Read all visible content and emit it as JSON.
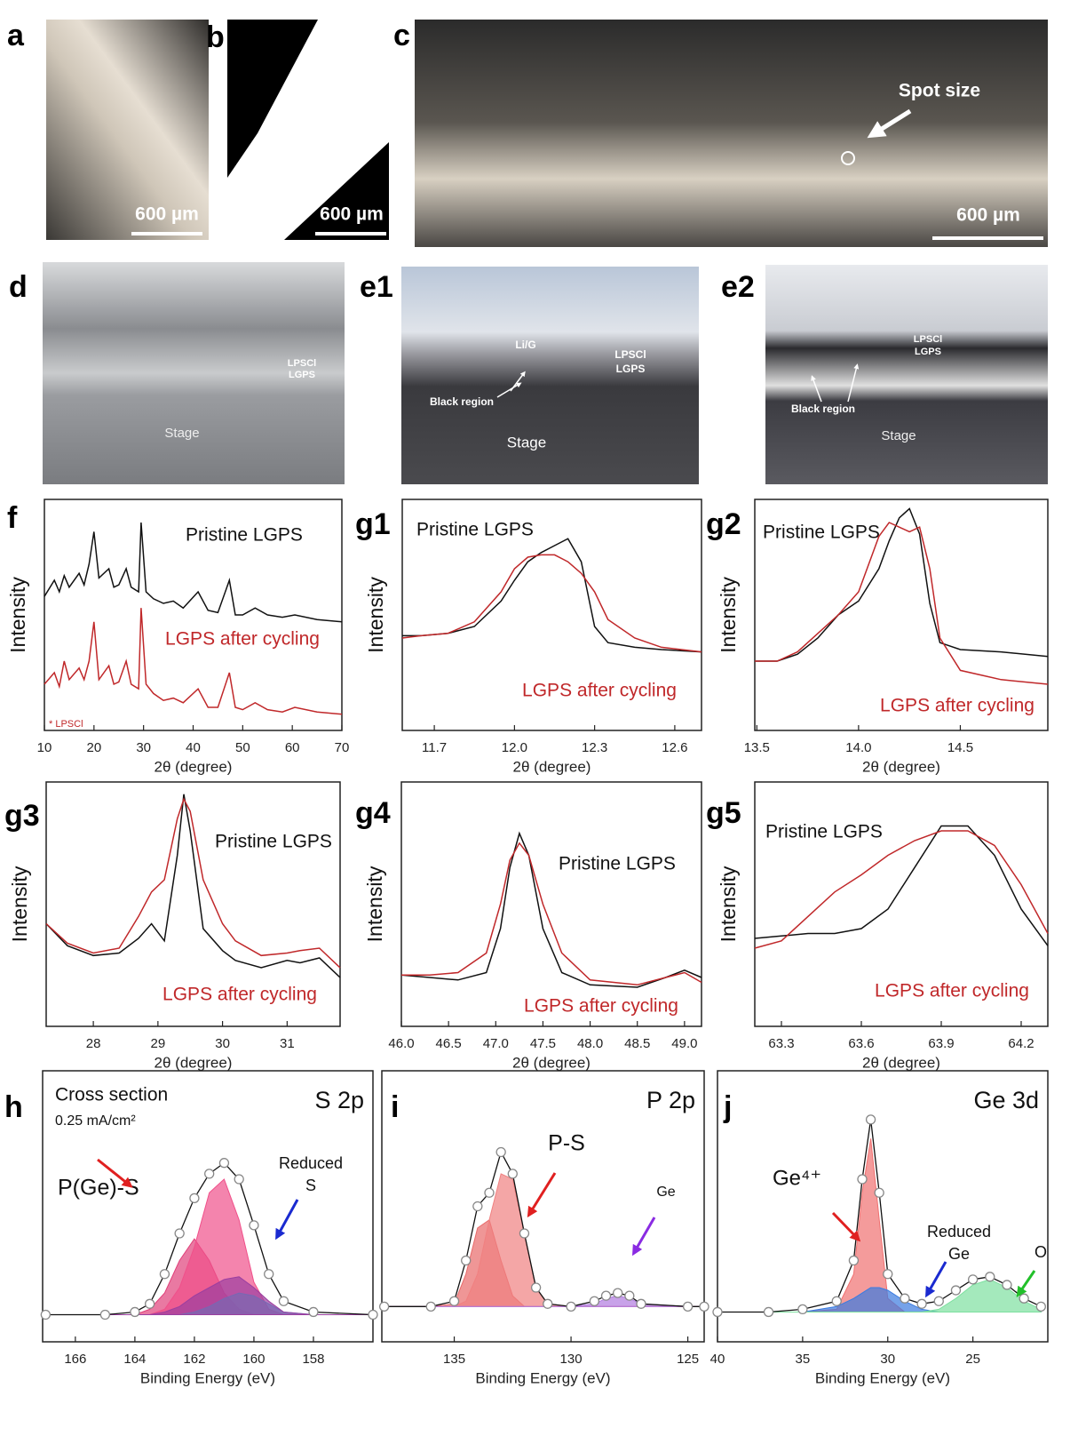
{
  "photos": [
    {
      "label": "a",
      "texts": [
        "600 µm"
      ]
    },
    {
      "label": "b",
      "texts": [
        "600 µm"
      ]
    },
    {
      "label": "c",
      "texts": [
        "Spot size",
        "600 µm"
      ]
    },
    {
      "label": "d",
      "texts": [
        "LPSCl",
        "LGPS",
        "Stage"
      ]
    },
    {
      "label": "e1",
      "texts": [
        "Li/G",
        "LPSCl",
        "LGPS",
        "Black region",
        "Stage"
      ]
    },
    {
      "label": "e2",
      "texts": [
        "LPSCl",
        "LGPS",
        "Black region",
        "Stage"
      ]
    }
  ],
  "chart_data": [
    {
      "type": "line",
      "panel": "f",
      "xlabel": "2θ (degree)",
      "ylabel": "Intensity",
      "xlim": [
        10,
        70
      ],
      "ylim": [
        0,
        1
      ],
      "xticks": [
        10,
        20,
        30,
        40,
        50,
        60,
        70
      ],
      "x": [
        10,
        12,
        13,
        14,
        15,
        17,
        18,
        19,
        20,
        21,
        23,
        24,
        25,
        26.5,
        27.5,
        29,
        29.5,
        30.5,
        32,
        34,
        36,
        38,
        41,
        43,
        45,
        47.3,
        48.5,
        50,
        52.5,
        55,
        58,
        60.5,
        65,
        70
      ],
      "series": [
        {
          "name": "Pristine LGPS",
          "color": "#111111",
          "values": [
            0.58,
            0.65,
            0.6,
            0.67,
            0.62,
            0.68,
            0.63,
            0.72,
            0.86,
            0.66,
            0.7,
            0.62,
            0.63,
            0.7,
            0.62,
            0.6,
            0.9,
            0.6,
            0.57,
            0.55,
            0.56,
            0.53,
            0.6,
            0.52,
            0.51,
            0.65,
            0.5,
            0.5,
            0.53,
            0.5,
            0.49,
            0.5,
            0.48,
            0.47
          ]
        },
        {
          "name": "LGPS after cycling",
          "color": "#c0282a",
          "values": [
            0.2,
            0.25,
            0.19,
            0.3,
            0.22,
            0.27,
            0.22,
            0.3,
            0.47,
            0.22,
            0.28,
            0.2,
            0.21,
            0.3,
            0.2,
            0.18,
            0.53,
            0.2,
            0.16,
            0.13,
            0.14,
            0.12,
            0.18,
            0.1,
            0.1,
            0.25,
            0.1,
            0.09,
            0.12,
            0.09,
            0.08,
            0.1,
            0.08,
            0.07
          ]
        }
      ],
      "annotations": [
        "* LPSCl"
      ]
    },
    {
      "type": "line",
      "panel": "g1",
      "xlabel": "2θ (degree)",
      "ylabel": "Intensity",
      "xlim": [
        11.58,
        12.7
      ],
      "ylim": [
        0,
        1
      ],
      "xticks": [
        11.7,
        {
          "value": 12,
          "label": "12.0"
        },
        12.3,
        12.6
      ],
      "x": [
        11.58,
        11.65,
        11.75,
        11.85,
        11.95,
        12.0,
        12.05,
        12.1,
        12.15,
        12.2,
        12.25,
        12.3,
        12.35,
        12.45,
        12.55,
        12.7
      ],
      "series": [
        {
          "name": "Pristine LGPS",
          "color": "#111111",
          "values": [
            0.41,
            0.41,
            0.42,
            0.45,
            0.56,
            0.65,
            0.73,
            0.77,
            0.8,
            0.83,
            0.73,
            0.45,
            0.38,
            0.36,
            0.35,
            0.34
          ]
        },
        {
          "name": "LGPS after cycling",
          "color": "#c0282a",
          "values": [
            0.4,
            0.41,
            0.42,
            0.47,
            0.6,
            0.7,
            0.75,
            0.76,
            0.76,
            0.73,
            0.68,
            0.6,
            0.48,
            0.4,
            0.36,
            0.34
          ]
        }
      ]
    },
    {
      "type": "line",
      "panel": "g2",
      "xlabel": "2θ (degree)",
      "ylabel": "Intensity",
      "xlim": [
        13.49,
        14.93
      ],
      "ylim": [
        0,
        1
      ],
      "xticks": [
        13.5,
        {
          "value": 14,
          "label": "14.0"
        },
        14.5
      ],
      "x": [
        13.49,
        13.6,
        13.7,
        13.8,
        13.9,
        14.0,
        14.1,
        14.15,
        14.2,
        14.25,
        14.3,
        14.35,
        14.4,
        14.5,
        14.7,
        14.93
      ],
      "series": [
        {
          "name": "Pristine LGPS",
          "color": "#111111",
          "values": [
            0.3,
            0.3,
            0.33,
            0.4,
            0.5,
            0.56,
            0.7,
            0.82,
            0.92,
            0.96,
            0.85,
            0.55,
            0.38,
            0.35,
            0.34,
            0.32
          ]
        },
        {
          "name": "LGPS after cycling",
          "color": "#c0282a",
          "values": [
            0.3,
            0.3,
            0.34,
            0.42,
            0.5,
            0.6,
            0.84,
            0.9,
            0.88,
            0.86,
            0.88,
            0.7,
            0.4,
            0.26,
            0.22,
            0.2
          ]
        }
      ]
    },
    {
      "type": "line",
      "panel": "g3",
      "xlabel": "2θ (degree)",
      "ylabel": "Intensity",
      "xlim": [
        27.27,
        31.82
      ],
      "ylim": [
        0,
        1
      ],
      "xticks": [
        28,
        29,
        30,
        31
      ],
      "x": [
        27.27,
        27.6,
        28.0,
        28.4,
        28.7,
        28.9,
        29.1,
        29.3,
        29.4,
        29.5,
        29.7,
        30.0,
        30.2,
        30.6,
        31.0,
        31.2,
        31.5,
        31.82
      ],
      "series": [
        {
          "name": "Pristine LGPS",
          "color": "#111111",
          "values": [
            0.42,
            0.33,
            0.29,
            0.3,
            0.36,
            0.42,
            0.35,
            0.7,
            0.95,
            0.8,
            0.4,
            0.31,
            0.27,
            0.24,
            0.27,
            0.26,
            0.28,
            0.2
          ]
        },
        {
          "name": "LGPS after cycling",
          "color": "#c0282a",
          "values": [
            0.42,
            0.34,
            0.3,
            0.32,
            0.45,
            0.55,
            0.6,
            0.85,
            0.93,
            0.88,
            0.6,
            0.42,
            0.35,
            0.29,
            0.3,
            0.31,
            0.32,
            0.24
          ]
        }
      ]
    },
    {
      "type": "line",
      "panel": "g4",
      "xlabel": "2θ (degree)",
      "ylabel": "Intensity",
      "xlim": [
        46,
        49.18
      ],
      "ylim": [
        0,
        1
      ],
      "xticks": [
        {
          "value": 46,
          "label": "46.0"
        },
        46.5,
        {
          "value": 47,
          "label": "47.0"
        },
        47.5,
        {
          "value": 48,
          "label": "48.0"
        },
        48.5,
        {
          "value": 49,
          "label": "49.0"
        }
      ],
      "x": [
        46.0,
        46.3,
        46.6,
        46.9,
        47.05,
        47.15,
        47.25,
        47.35,
        47.5,
        47.7,
        48.0,
        48.5,
        48.8,
        49.0,
        49.18
      ],
      "series": [
        {
          "name": "Pristine LGPS",
          "color": "#111111",
          "values": [
            0.21,
            0.2,
            0.19,
            0.22,
            0.4,
            0.65,
            0.79,
            0.7,
            0.4,
            0.22,
            0.17,
            0.16,
            0.2,
            0.23,
            0.2
          ]
        },
        {
          "name": "LGPS after cycling",
          "color": "#c0282a",
          "values": [
            0.21,
            0.21,
            0.22,
            0.3,
            0.5,
            0.68,
            0.75,
            0.7,
            0.5,
            0.3,
            0.19,
            0.17,
            0.2,
            0.22,
            0.18
          ]
        }
      ]
    },
    {
      "type": "line",
      "panel": "g5",
      "xlabel": "2θ (degree)",
      "ylabel": "Intensity",
      "xlim": [
        63.2,
        64.3
      ],
      "ylim": [
        0,
        1
      ],
      "xticks": [
        63.3,
        63.6,
        63.9,
        64.2
      ],
      "x": [
        63.2,
        63.3,
        63.4,
        63.5,
        63.6,
        63.7,
        63.8,
        63.9,
        64.0,
        64.1,
        64.2,
        64.3
      ],
      "series": [
        {
          "name": "Pristine LGPS",
          "color": "#111111",
          "values": [
            0.36,
            0.37,
            0.38,
            0.38,
            0.4,
            0.48,
            0.65,
            0.82,
            0.82,
            0.7,
            0.48,
            0.33
          ]
        },
        {
          "name": "LGPS after cycling",
          "color": "#c0282a",
          "values": [
            0.32,
            0.35,
            0.45,
            0.55,
            0.62,
            0.7,
            0.76,
            0.8,
            0.8,
            0.74,
            0.58,
            0.38
          ]
        }
      ]
    },
    {
      "type": "xps",
      "panel": "h",
      "title": "S 2p",
      "xlabel": "Binding Energy (eV)",
      "xlim": [
        167.1,
        156.0
      ],
      "ylim": [
        0,
        1
      ],
      "xticks": [
        166,
        164,
        162,
        160,
        158
      ],
      "x": [
        167,
        165,
        164,
        163.5,
        163,
        162.5,
        162,
        161.5,
        161,
        160.5,
        160,
        159.5,
        159,
        158,
        156
      ],
      "series": [
        {
          "style": "circles",
          "color": "#111111",
          "values": [
            0.1,
            0.1,
            0.11,
            0.14,
            0.25,
            0.4,
            0.53,
            0.62,
            0.66,
            0.6,
            0.43,
            0.25,
            0.15,
            0.11,
            0.1
          ]
        },
        {
          "style": "fill",
          "color": "#e0407a",
          "values": [
            0.1,
            0.1,
            0.1,
            0.12,
            0.18,
            0.3,
            0.38,
            0.3,
            0.18,
            0.12,
            0.1,
            0.1,
            0.1,
            0.1,
            0.1
          ]
        },
        {
          "style": "fill",
          "color": "#f0508a",
          "values": [
            0.1,
            0.1,
            0.1,
            0.1,
            0.12,
            0.2,
            0.35,
            0.55,
            0.6,
            0.45,
            0.22,
            0.12,
            0.1,
            0.1,
            0.1
          ]
        },
        {
          "style": "fill",
          "color": "#22c9e0",
          "values": [
            0.1,
            0.1,
            0.1,
            0.1,
            0.1,
            0.1,
            0.11,
            0.13,
            0.16,
            0.18,
            0.17,
            0.14,
            0.11,
            0.1,
            0.1
          ]
        },
        {
          "style": "fill",
          "color": "#9b3fa0",
          "values": [
            0.1,
            0.1,
            0.1,
            0.1,
            0.11,
            0.13,
            0.17,
            0.2,
            0.23,
            0.24,
            0.2,
            0.15,
            0.11,
            0.1,
            0.1
          ]
        }
      ],
      "annotations": [
        "Cross section",
        "0.25 mA/cm²",
        "P(Ge)-S",
        "Reduced",
        "S"
      ]
    },
    {
      "type": "xps",
      "panel": "i",
      "title": "P 2p",
      "xlabel": "Binding Energy (eV)",
      "xlim": [
        138.1,
        124.3
      ],
      "ylim": [
        0,
        1
      ],
      "xticks": [
        135,
        130,
        125
      ],
      "x": [
        138,
        136,
        135,
        134.5,
        134,
        133.5,
        133,
        132.5,
        132,
        131.5,
        131,
        130,
        129,
        128.5,
        128,
        127.5,
        127,
        125,
        124.3
      ],
      "series": [
        {
          "style": "circles",
          "color": "#111111",
          "values": [
            0.13,
            0.13,
            0.15,
            0.3,
            0.5,
            0.55,
            0.7,
            0.62,
            0.4,
            0.2,
            0.14,
            0.13,
            0.15,
            0.17,
            0.18,
            0.17,
            0.14,
            0.13,
            0.13
          ]
        },
        {
          "style": "fill",
          "color": "#e86a6a",
          "values": [
            0.13,
            0.13,
            0.14,
            0.25,
            0.42,
            0.45,
            0.3,
            0.17,
            0.13,
            0.13,
            0.13,
            0.13,
            0.13,
            0.13,
            0.13,
            0.13,
            0.13,
            0.13,
            0.13
          ]
        },
        {
          "style": "fill",
          "color": "#f08080",
          "values": [
            0.13,
            0.13,
            0.13,
            0.15,
            0.25,
            0.45,
            0.62,
            0.6,
            0.4,
            0.2,
            0.14,
            0.13,
            0.13,
            0.13,
            0.13,
            0.13,
            0.13,
            0.13,
            0.13
          ]
        },
        {
          "style": "fill",
          "color": "#b07be0",
          "values": [
            0.13,
            0.13,
            0.13,
            0.13,
            0.13,
            0.13,
            0.13,
            0.13,
            0.13,
            0.13,
            0.13,
            0.13,
            0.14,
            0.16,
            0.17,
            0.16,
            0.14,
            0.13,
            0.13
          ]
        }
      ],
      "annotations": [
        "P-S",
        "Ge"
      ]
    },
    {
      "type": "xps",
      "panel": "j",
      "title": "Ge 3d",
      "xlabel": "Binding Energy (eV)",
      "xlim": [
        40,
        20.6
      ],
      "ylim": [
        0,
        1
      ],
      "xticks": [
        40,
        35,
        30,
        25
      ],
      "x": [
        40,
        37,
        35,
        33,
        32,
        31.5,
        31,
        30.5,
        30,
        29,
        28,
        27,
        26,
        25,
        24,
        23,
        22,
        21
      ],
      "series": [
        {
          "style": "circles",
          "color": "#111111",
          "values": [
            0.11,
            0.11,
            0.12,
            0.15,
            0.3,
            0.6,
            0.82,
            0.55,
            0.25,
            0.16,
            0.14,
            0.15,
            0.19,
            0.23,
            0.24,
            0.21,
            0.16,
            0.13
          ]
        },
        {
          "style": "fill",
          "color": "#f07070",
          "values": [
            0.11,
            0.11,
            0.11,
            0.12,
            0.25,
            0.55,
            0.75,
            0.45,
            0.16,
            0.11,
            0.11,
            0.11,
            0.11,
            0.11,
            0.11,
            0.11,
            0.11,
            0.11
          ]
        },
        {
          "style": "fill",
          "color": "#3a7be0",
          "values": [
            0.11,
            0.11,
            0.11,
            0.13,
            0.16,
            0.18,
            0.2,
            0.2,
            0.19,
            0.15,
            0.12,
            0.11,
            0.11,
            0.11,
            0.11,
            0.11,
            0.11,
            0.11
          ]
        },
        {
          "style": "fill",
          "color": "#7ee0a0",
          "values": [
            0.11,
            0.11,
            0.11,
            0.11,
            0.11,
            0.11,
            0.11,
            0.11,
            0.11,
            0.11,
            0.11,
            0.12,
            0.16,
            0.21,
            0.23,
            0.2,
            0.15,
            0.12
          ]
        }
      ],
      "annotations": [
        "Ge⁴⁺",
        "Reduced",
        "Ge",
        "O"
      ]
    }
  ]
}
